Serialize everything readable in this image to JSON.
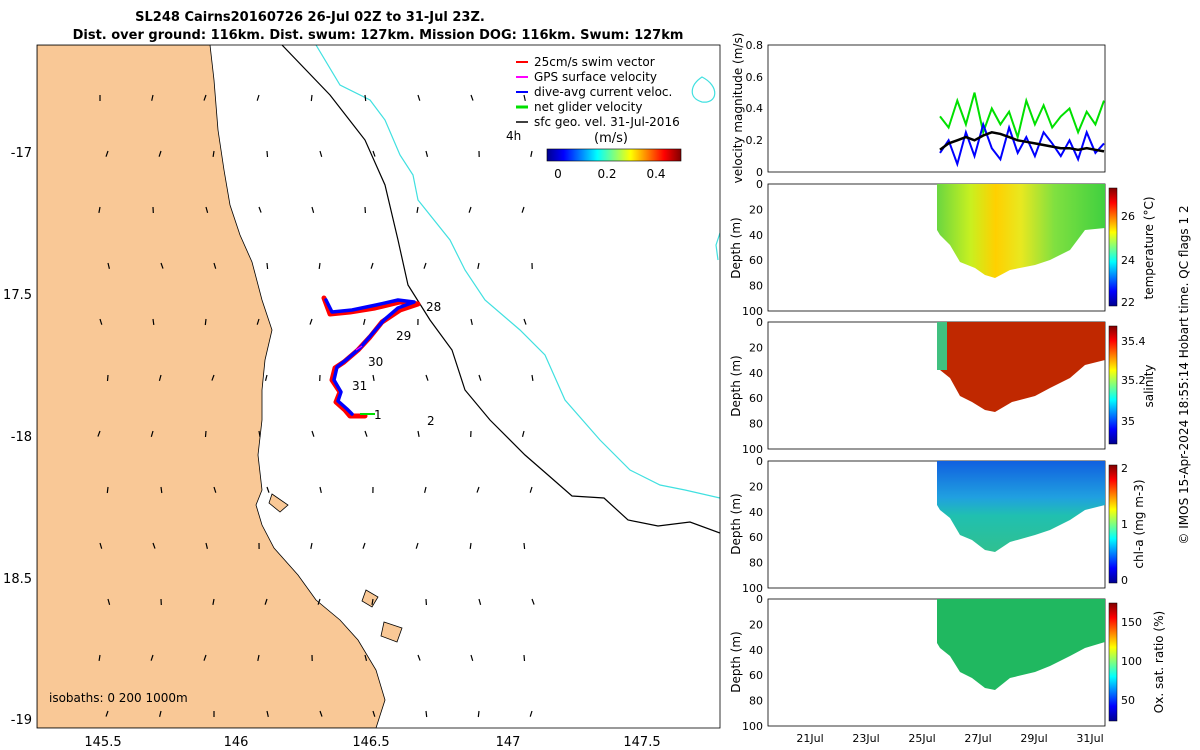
{
  "title_line1": "SL248 Cairns20160726 26-Jul 02Z to 31-Jul 23Z.",
  "title_line2": "Dist. over ground: 116km. Dist. swum: 127km. Mission DOG: 116km. Swum: 127km",
  "credit": "© IMOS 15-Apr-2024 18:55:14 Hobart time. QC flags 1  2",
  "colors": {
    "land": "#f9c896",
    "isobath200": "#40e0e0",
    "isobath1000": "#000000",
    "swim": "#ff0000",
    "gps": "#ff00ff",
    "dive": "#0000ff",
    "net": "#00e000",
    "sfc": "#000000"
  },
  "map": {
    "lon_ticks": [
      "145.5",
      "146",
      "146.5",
      "147",
      "147.5"
    ],
    "lat_ticks": [
      "-17",
      "17.5",
      "-18",
      "18.5",
      "-19"
    ],
    "legend": [
      "25cm/s swim vector",
      "GPS surface velocity",
      "dive-avg current veloc.",
      "net glider velocity",
      "sfc geo. vel. 31-Jul-2016"
    ],
    "legend_time_label": "4h",
    "colorbar_unit": "(m/s)",
    "colorbar_ticks": [
      "0",
      "0.2",
      "0.4"
    ],
    "day_labels": [
      "28",
      "29",
      "30",
      "31",
      "1",
      "2"
    ],
    "isobath_note": "isobaths: 0   200  1000m"
  },
  "chart_data": [
    {
      "type": "line",
      "ylabel": "velocity magnitude (m/s)",
      "ylim": [
        0,
        0.8
      ],
      "yticks": [
        "0.8",
        "0.6",
        "0.4",
        "0.2",
        "0"
      ],
      "series": [
        {
          "color": "#00e000",
          "values": [
            0.35,
            0.28,
            0.45,
            0.3,
            0.5,
            0.25,
            0.4,
            0.3,
            0.38,
            0.22,
            0.45,
            0.3,
            0.42,
            0.28,
            0.35,
            0.4,
            0.25,
            0.38,
            0.3,
            0.45
          ]
        },
        {
          "color": "#0000ff",
          "values": [
            0.12,
            0.2,
            0.05,
            0.25,
            0.1,
            0.3,
            0.15,
            0.08,
            0.28,
            0.12,
            0.22,
            0.1,
            0.25,
            0.18,
            0.1,
            0.2,
            0.08,
            0.25,
            0.12,
            0.18
          ]
        },
        {
          "color": "#000000",
          "values": [
            0.14,
            0.18,
            0.2,
            0.22,
            0.2,
            0.23,
            0.25,
            0.24,
            0.22,
            0.2,
            0.19,
            0.18,
            0.17,
            0.16,
            0.15,
            0.15,
            0.14,
            0.15,
            0.14,
            0.13
          ]
        }
      ]
    },
    {
      "type": "heatmap",
      "ylabel": "Depth (m)",
      "yticks": [
        "0",
        "20",
        "40",
        "60",
        "80",
        "100"
      ],
      "cbar_label": "temperature (°C)",
      "cbar_ticks": [
        "26",
        "24",
        "22"
      ],
      "cbar_colormap": "jet"
    },
    {
      "type": "heatmap",
      "ylabel": "Depth (m)",
      "yticks": [
        "0",
        "20",
        "40",
        "60",
        "80",
        "100"
      ],
      "cbar_label": "salinity",
      "cbar_ticks": [
        "35.4",
        "35.2",
        "35"
      ],
      "cbar_colormap": "jet"
    },
    {
      "type": "heatmap",
      "ylabel": "Depth (m)",
      "yticks": [
        "0",
        "20",
        "40",
        "60",
        "80",
        "100"
      ],
      "cbar_label": "chl-a (mg m-3)",
      "cbar_ticks": [
        "2",
        "1",
        "0"
      ],
      "cbar_colormap": "jet"
    },
    {
      "type": "heatmap",
      "ylabel": "Depth (m)",
      "yticks": [
        "0",
        "20",
        "40",
        "60",
        "80",
        "100"
      ],
      "cbar_label": "Ox. sat. ratio (%)",
      "cbar_ticks": [
        "150",
        "100",
        "50"
      ],
      "cbar_colormap": "jet",
      "xticks": [
        "21Jul",
        "23Jul",
        "25Jul",
        "27Jul",
        "29Jul",
        "31Jul"
      ]
    }
  ]
}
